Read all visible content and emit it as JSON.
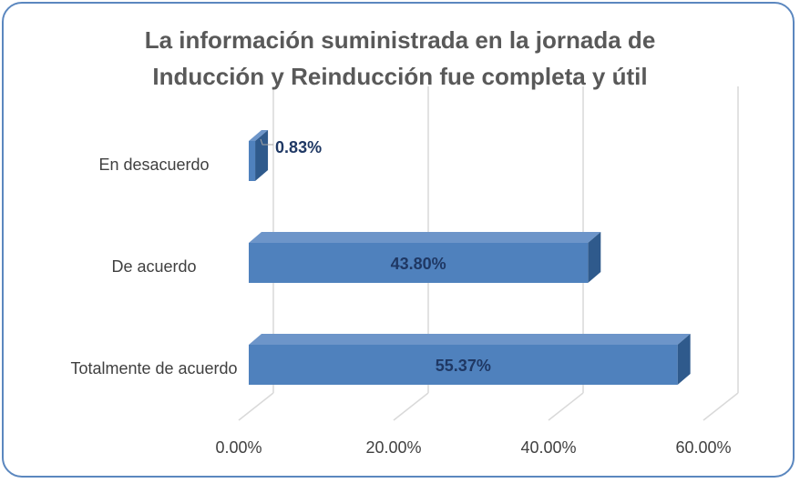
{
  "chart_data": {
    "type": "bar3d_horizontal",
    "title": "La información suministrada en la jornada de Inducción y Reinducción fue completa y útil",
    "categories": [
      "En desacuerdo",
      "De acuerdo",
      "Totalmente de acuerdo"
    ],
    "values": [
      0.83,
      43.8,
      55.37
    ],
    "value_labels": [
      "0.83%",
      "43.80%",
      "55.37%"
    ],
    "color": "#4f81bd",
    "xlim": [
      0,
      60
    ],
    "xticks": [
      {
        "value": 0,
        "label": "0.00%"
      },
      {
        "value": 20,
        "label": "20.00%"
      },
      {
        "value": 40,
        "label": "40.00%"
      },
      {
        "value": 60,
        "label": "60.00%"
      }
    ],
    "grid": true
  }
}
